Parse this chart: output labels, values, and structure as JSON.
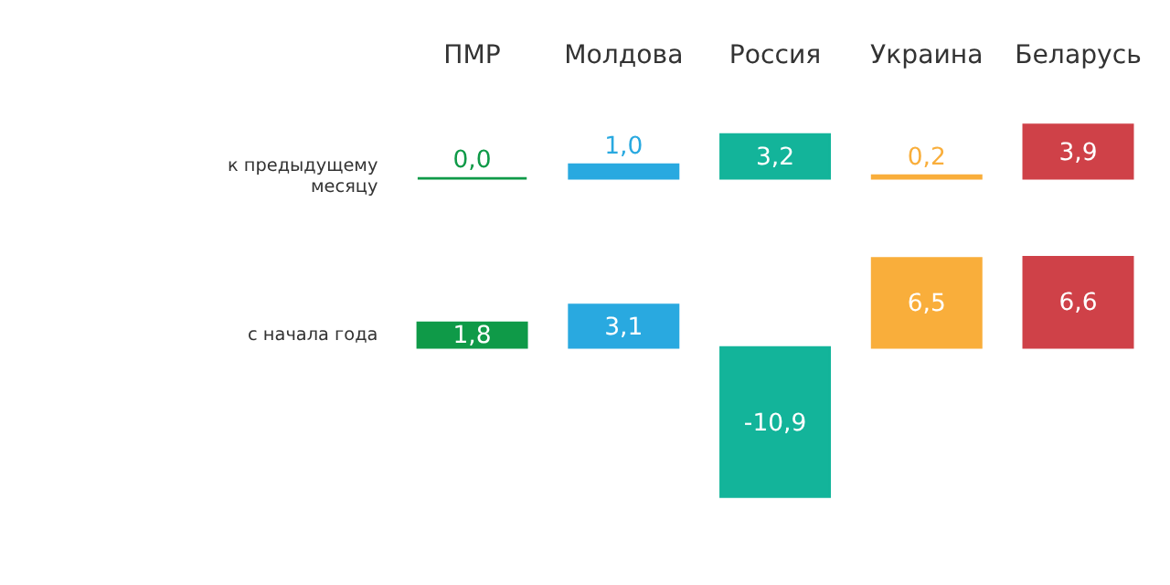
{
  "chart_data": [
    {
      "type": "bar",
      "categories": [
        "ПМР",
        "Молдова",
        "Россия",
        "Украина",
        "Беларусь"
      ],
      "values": [
        0.0,
        1.0,
        3.2,
        0.2,
        3.9
      ],
      "colors": [
        "#0f9a48",
        "#29a9e0",
        "#13b49a",
        "#f9ae3b",
        "#cf4148"
      ],
      "ylabel": "к предыдущему месяцу",
      "value_labels": [
        "0,0",
        "1,0",
        "3,2",
        "0,2",
        "3,9"
      ],
      "tick_labels": "x"
    },
    {
      "type": "bar",
      "categories": [
        null,
        null,
        null,
        null,
        null
      ],
      "values": [
        1.8,
        3.1,
        -10.9,
        6.5,
        6.6
      ],
      "colors": [
        "#0f9a48",
        "#29a9e0",
        "#13b49a",
        "#f9ae3b",
        "#cf4148"
      ],
      "ylabel": "с начала года",
      "value_labels": [
        "1,8",
        "3,1",
        "-10,9",
        "6,5",
        "6,6"
      ],
      "tick_labels": false
    }
  ]
}
